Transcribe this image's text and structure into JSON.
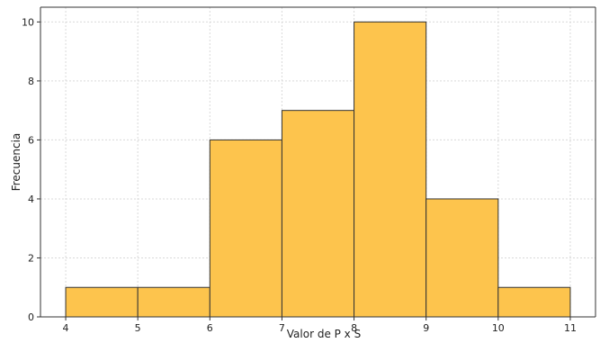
{
  "chart_data": {
    "type": "bar",
    "title": "",
    "xlabel": "Valor de P x S",
    "ylabel": "Frecuencia",
    "bins": [
      {
        "from": 4,
        "to": 5,
        "count": 1
      },
      {
        "from": 5,
        "to": 6,
        "count": 1
      },
      {
        "from": 6,
        "to": 7,
        "count": 6
      },
      {
        "from": 7,
        "to": 8,
        "count": 7
      },
      {
        "from": 8,
        "to": 9,
        "count": 10
      },
      {
        "from": 9,
        "to": 10,
        "count": 4
      },
      {
        "from": 10,
        "to": 11,
        "count": 1
      }
    ],
    "xticks": [
      "4",
      "5",
      "6",
      "7",
      "8",
      "9",
      "10",
      "11"
    ],
    "yticks": [
      "0",
      "2",
      "4",
      "6",
      "8",
      "10"
    ],
    "xlim": [
      3.65,
      11.35
    ],
    "ylim": [
      0,
      10.5
    ],
    "grid": true,
    "colors": {
      "bar": "#fdc44d",
      "edge": "#333333"
    }
  }
}
